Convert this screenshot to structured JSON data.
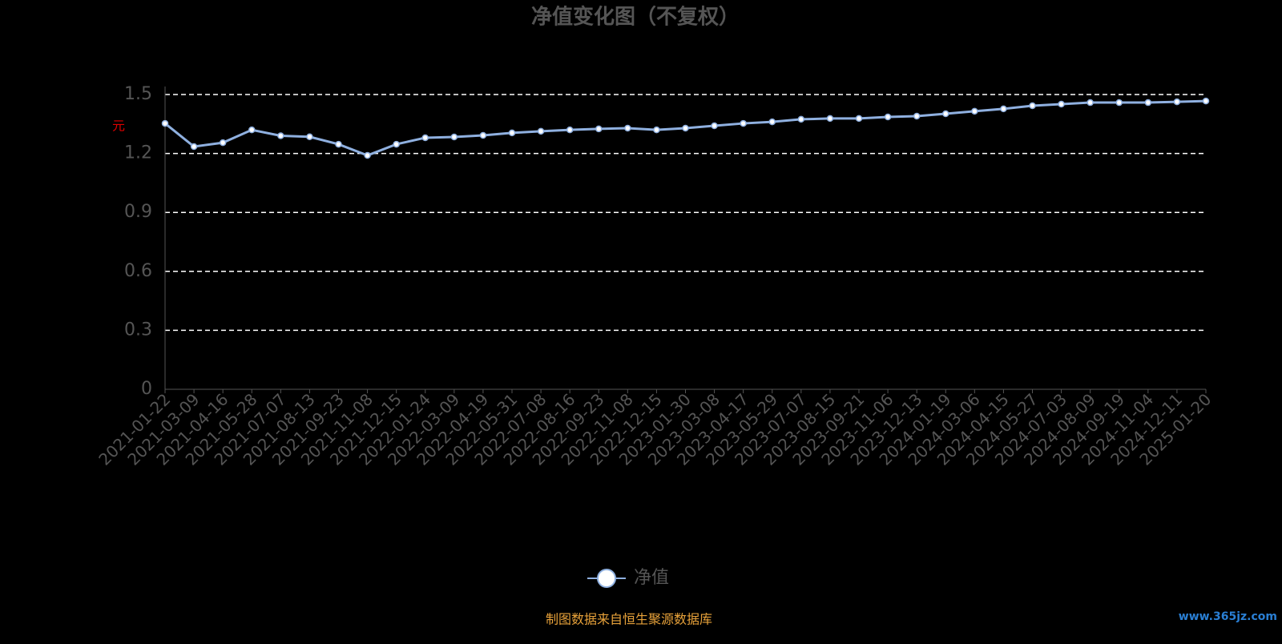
{
  "chart_data": {
    "type": "line",
    "title": "净值变化图（不复权）",
    "y_label": "元",
    "categories": [
      "2021-01-22",
      "2021-03-09",
      "2021-04-16",
      "2021-05-28",
      "2021-07-07",
      "2021-08-13",
      "2021-09-23",
      "2021-11-08",
      "2021-12-15",
      "2022-01-24",
      "2022-03-09",
      "2022-04-19",
      "2022-05-31",
      "2022-07-08",
      "2022-08-16",
      "2022-09-23",
      "2022-11-08",
      "2022-12-15",
      "2023-01-30",
      "2023-03-08",
      "2023-04-17",
      "2023-05-29",
      "2023-07-07",
      "2023-08-15",
      "2023-09-21",
      "2023-11-06",
      "2023-12-13",
      "2024-01-19",
      "2024-03-06",
      "2024-04-15",
      "2024-05-27",
      "2024-07-03",
      "2024-08-09",
      "2024-09-19",
      "2024-11-04",
      "2024-12-11",
      "2025-01-20"
    ],
    "series": [
      {
        "name": "净值",
        "color": "#8fb0e0",
        "values": [
          1.353,
          1.235,
          1.255,
          1.32,
          1.29,
          1.285,
          1.247,
          1.19,
          1.247,
          1.28,
          1.284,
          1.292,
          1.305,
          1.313,
          1.32,
          1.325,
          1.329,
          1.32,
          1.329,
          1.341,
          1.353,
          1.361,
          1.374,
          1.378,
          1.378,
          1.386,
          1.39,
          1.402,
          1.415,
          1.427,
          1.443,
          1.451,
          1.459,
          1.459,
          1.459,
          1.463,
          1.467
        ]
      }
    ],
    "ylim": [
      0,
      1.5
    ],
    "yticks": [
      0,
      0.3,
      0.6,
      0.9,
      1.2,
      1.5
    ],
    "grid": true,
    "legend": "bottom",
    "footnote": "制图数据来自恒生聚源数据库",
    "watermark": "www.365jz.com"
  }
}
